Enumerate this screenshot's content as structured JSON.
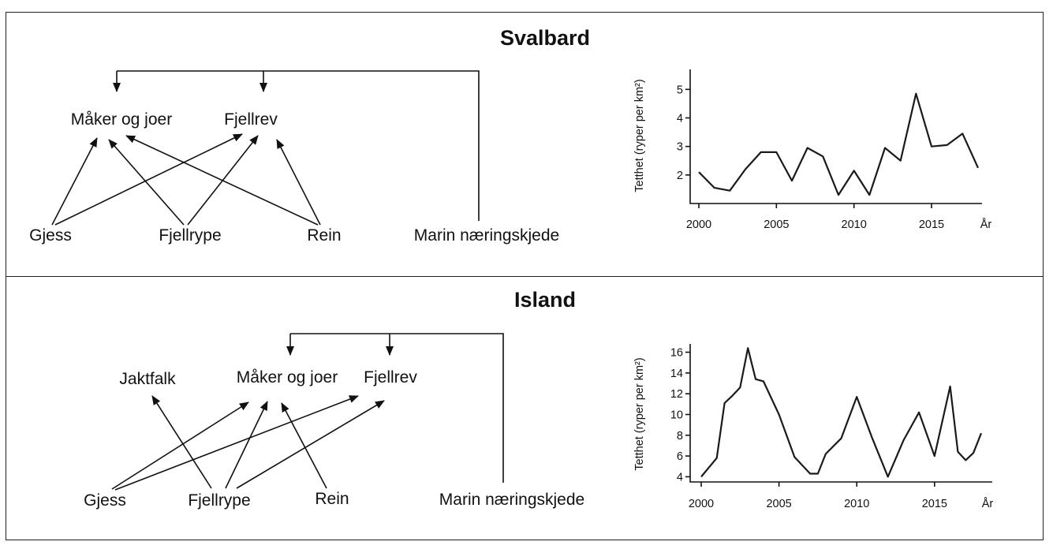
{
  "panels": [
    {
      "title": "Svalbard",
      "food_web": {
        "nodes": {
          "maker": "Måker og joer",
          "fjellrev": "Fjellrev",
          "gjess": "Gjess",
          "fjellrype": "Fjellrype",
          "rein": "Rein",
          "marin": "Marin næringskjede"
        },
        "edges": [
          [
            "gjess",
            "maker"
          ],
          [
            "gjess",
            "fjellrev"
          ],
          [
            "fjellrype",
            "maker"
          ],
          [
            "fjellrype",
            "fjellrev"
          ],
          [
            "rein",
            "maker"
          ],
          [
            "rein",
            "fjellrev"
          ],
          [
            "marin",
            "maker"
          ],
          [
            "marin",
            "fjellrev"
          ]
        ]
      }
    },
    {
      "title": "Island",
      "food_web": {
        "nodes": {
          "jaktfalk": "Jaktfalk",
          "maker": "Måker og joer",
          "fjellrev": "Fjellrev",
          "gjess": "Gjess",
          "fjellrype": "Fjellrype",
          "rein": "Rein",
          "marin": "Marin næringskjede"
        },
        "edges": [
          [
            "fjellrype",
            "jaktfalk"
          ],
          [
            "gjess",
            "maker"
          ],
          [
            "gjess",
            "fjellrev"
          ],
          [
            "fjellrype",
            "maker"
          ],
          [
            "fjellrype",
            "fjellrev"
          ],
          [
            "rein",
            "maker"
          ],
          [
            "marin",
            "maker"
          ],
          [
            "marin",
            "fjellrev"
          ]
        ]
      }
    }
  ],
  "chart_data": [
    {
      "type": "line",
      "panel": "Svalbard",
      "ylabel": "Tetthet (ryper per km²)",
      "xlabel": "År",
      "xlim": [
        2000,
        2018
      ],
      "ylim": [
        1,
        5.7
      ],
      "xticks": [
        2000,
        2005,
        2010,
        2015
      ],
      "yticks": [
        2,
        3,
        4,
        5
      ],
      "x": [
        2000,
        2001,
        2002,
        2003,
        2004,
        2005,
        2006,
        2007,
        2008,
        2009,
        2010,
        2011,
        2012,
        2013,
        2014,
        2015,
        2016,
        2017,
        2018
      ],
      "y": [
        2.1,
        1.55,
        1.45,
        2.2,
        2.8,
        2.8,
        1.8,
        2.95,
        2.65,
        1.3,
        2.15,
        1.3,
        2.95,
        2.5,
        4.85,
        3.0,
        3.05,
        3.45,
        2.25
      ]
    },
    {
      "type": "line",
      "panel": "Island",
      "ylabel": "Tetthet (ryper per km²)",
      "xlabel": "År",
      "xlim": [
        2000,
        2018
      ],
      "ylim": [
        3.5,
        16.8
      ],
      "xticks": [
        2000,
        2005,
        2010,
        2015
      ],
      "yticks": [
        4,
        6,
        8,
        10,
        12,
        14,
        16
      ],
      "x": [
        2000,
        2001,
        2001.5,
        2002,
        2002.5,
        2003,
        2003.5,
        2004,
        2005,
        2006,
        2007,
        2007.5,
        2008,
        2009,
        2010,
        2011,
        2012,
        2013,
        2014,
        2015,
        2016,
        2016.5,
        2017,
        2017.5,
        2018
      ],
      "y": [
        4.0,
        5.8,
        11.1,
        11.8,
        12.6,
        16.4,
        13.4,
        13.2,
        10.0,
        5.9,
        4.3,
        4.3,
        6.2,
        7.7,
        11.7,
        7.7,
        4.0,
        7.5,
        10.2,
        6.0,
        12.7,
        6.4,
        5.6,
        6.3,
        8.2
      ]
    }
  ]
}
